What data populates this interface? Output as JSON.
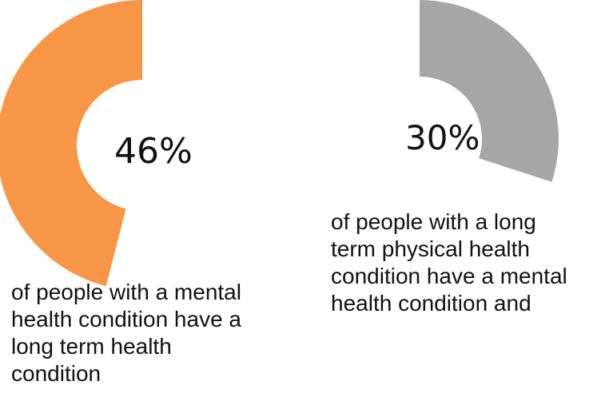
{
  "chart_data": [
    {
      "type": "pie",
      "style": "donut",
      "value": 46,
      "label": "46%",
      "color": "#f79646",
      "caption_lines": [
        "of people with a mental",
        "health condition have a",
        "long term health",
        "condition"
      ]
    },
    {
      "type": "pie",
      "style": "donut",
      "value": 30,
      "label": "30%",
      "color": "#a6a6a6",
      "caption_lines": [
        "of people with a long",
        "term physical health",
        "condition have a mental",
        "health condition and"
      ]
    }
  ]
}
